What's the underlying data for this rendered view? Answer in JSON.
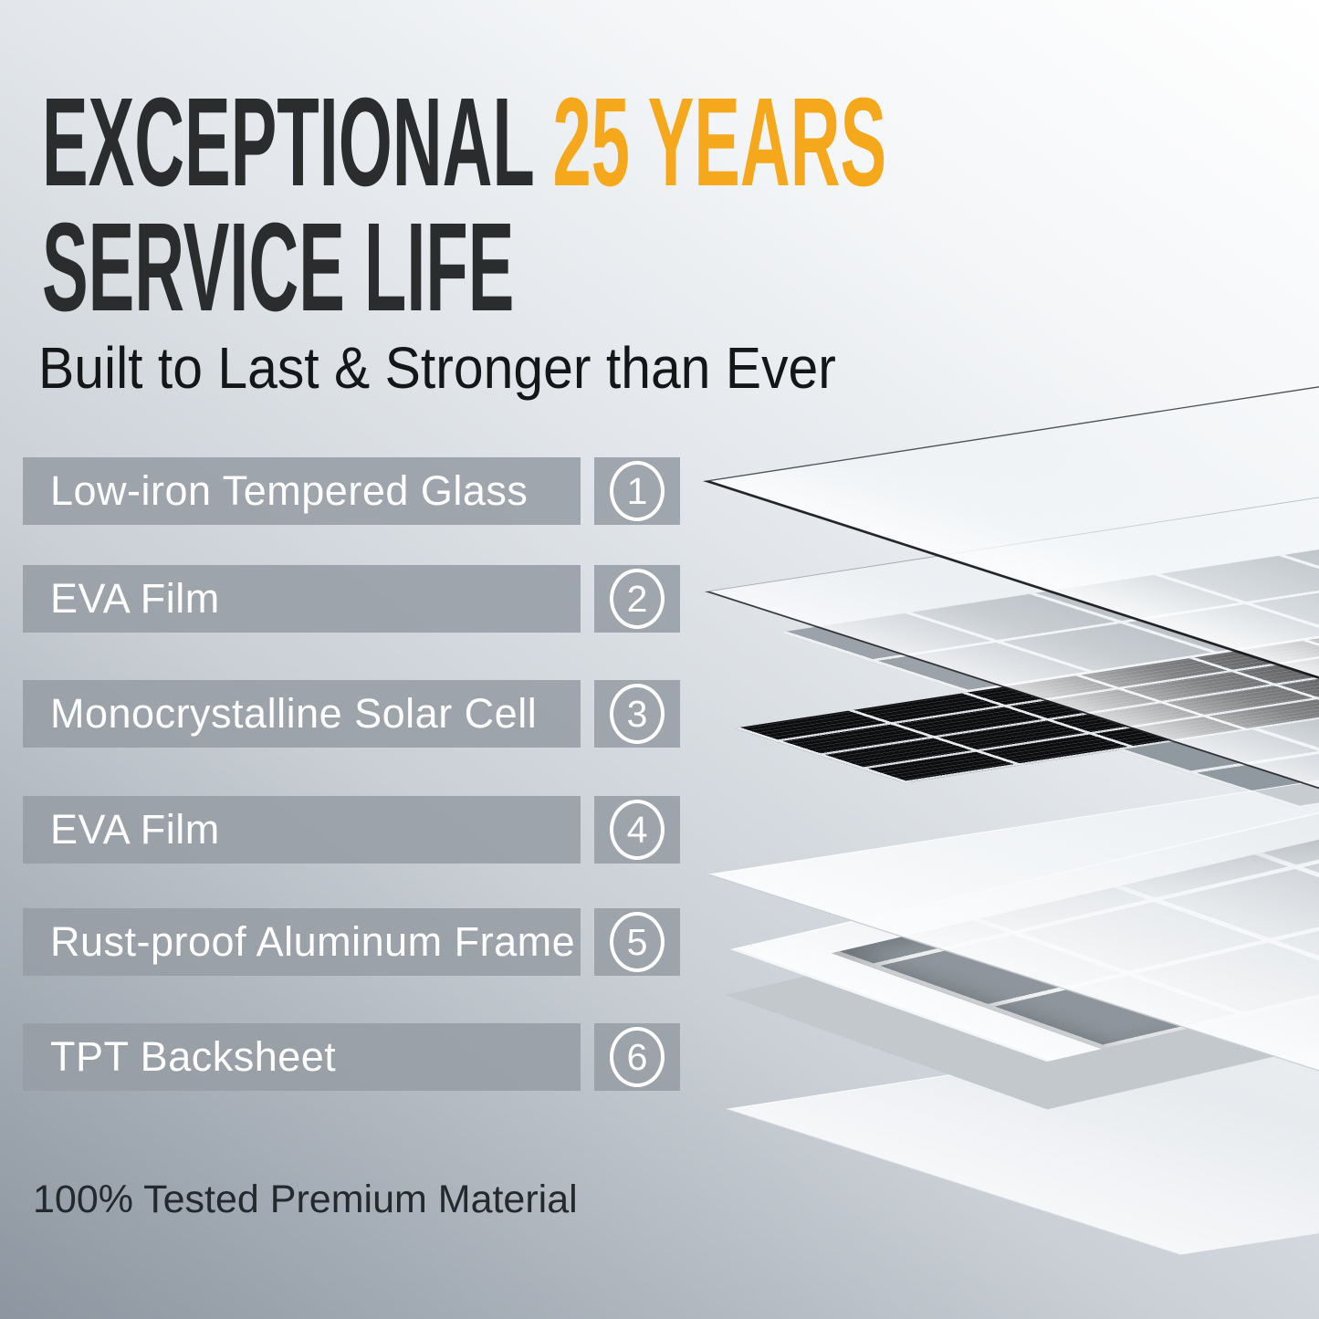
{
  "title": {
    "line1_dark": "EXCEPTIONAL ",
    "line1_accent": "25 YEARS",
    "line2_dark": "SERVICE LIFE"
  },
  "subtitle": "Built to Last & Stronger than Ever",
  "layers": [
    {
      "number": "1",
      "label": "Low-iron Tempered Glass"
    },
    {
      "number": "2",
      "label": "EVA Film"
    },
    {
      "number": "3",
      "label": "Monocrystalline Solar Cell"
    },
    {
      "number": "4",
      "label": "EVA Film"
    },
    {
      "number": "5",
      "label": "Rust-proof Aluminum Frame"
    },
    {
      "number": "6",
      "label": "TPT Backsheet"
    }
  ],
  "footer": "100% Tested Premium Material",
  "colors": {
    "accent": "#F6A81C",
    "title_text": "#2B2C2E",
    "bar_background": "#969FA5",
    "bar_text": "#FFFFFF",
    "background_top_right": "#FFFFFF",
    "background_bottom_left": "#8D96A0",
    "solar_cell_black": "#0D0E10"
  }
}
